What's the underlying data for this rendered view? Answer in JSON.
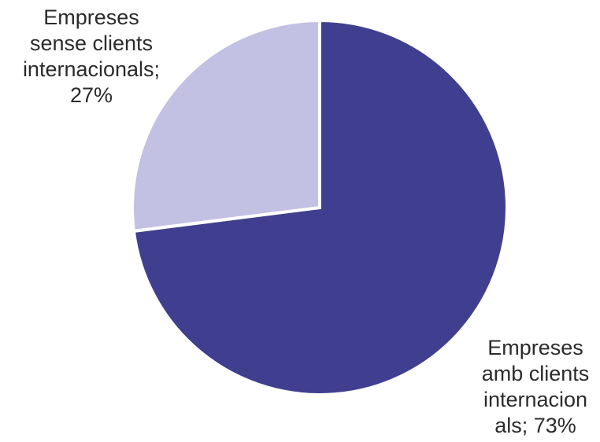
{
  "chart_data": {
    "type": "pie",
    "title": "",
    "slices": [
      {
        "label_lines": [
          "Empreses",
          "amb clients",
          "internacion",
          "als; 73%"
        ],
        "value": 73,
        "color": "#403f8f"
      },
      {
        "label_lines": [
          "Empreses",
          "sense clients",
          "internacionals;",
          "27%"
        ],
        "value": 27,
        "color": "#c2c0e3"
      }
    ],
    "start": "12 o'clock",
    "direction": "clockwise",
    "separator_color": "#ffffff"
  }
}
